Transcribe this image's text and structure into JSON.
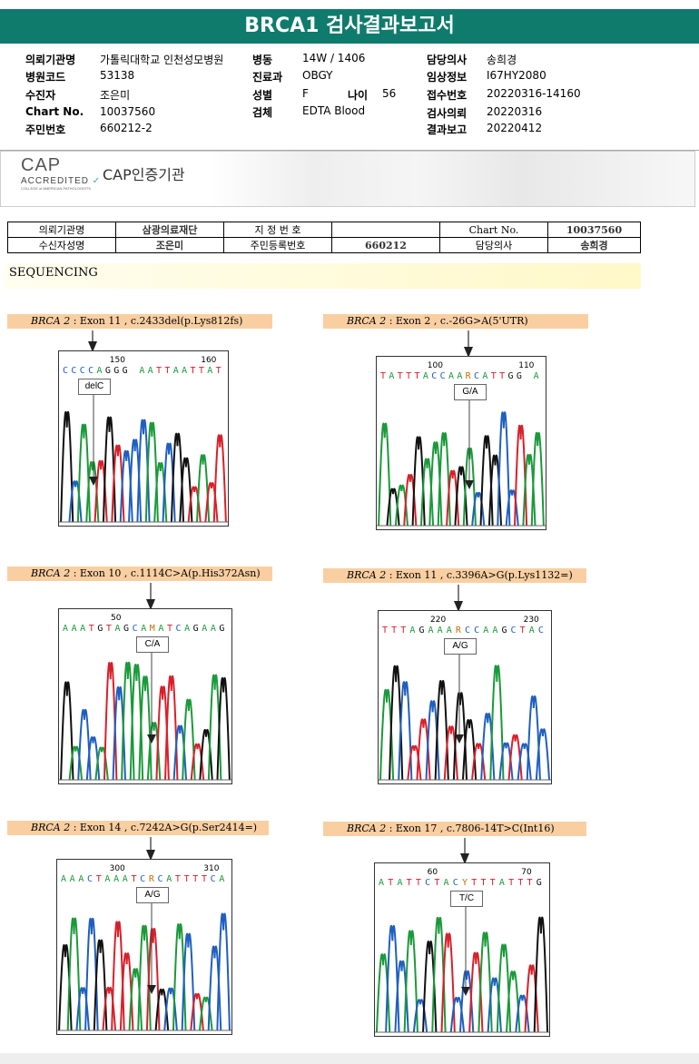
{
  "title": "BRCA1 검사결과보고서",
  "info": [
    {
      "label": "의뢰기관명",
      "value": "가톨릭대학교 인천성모병원"
    },
    {
      "label": "병원코드",
      "value": "53138"
    },
    {
      "label": "수진자",
      "value": "조은미"
    },
    {
      "label": "Chart No.",
      "value": "10037560"
    },
    {
      "label": "주민번호",
      "value": "660212-2"
    },
    {
      "label": "병동",
      "value": "14W / 1406"
    },
    {
      "label": "진료과",
      "value": "OBGY"
    },
    {
      "label": "성별",
      "value": "F"
    },
    {
      "label": "나이",
      "value": "56"
    },
    {
      "label": "검체",
      "value": "EDTA Blood"
    },
    {
      "label": "담당의사",
      "value": "송희경"
    },
    {
      "label": "임상정보",
      "value": "I67HY2080"
    },
    {
      "label": "접수번호",
      "value": "20220316-14160"
    },
    {
      "label": "검사의뢰",
      "value": "20220316"
    },
    {
      "label": "결과보고",
      "value": "20220412"
    }
  ],
  "cap": {
    "big": "CAP",
    "accredited": "ACCREDITED",
    "college": "COLLEGE of AMERICAN PATHOLOGISTS",
    "text": "CAP인증기관"
  },
  "patient_table": {
    "r1": [
      "의뢰기관명",
      "삼광의료재단",
      "지 정 번 호",
      "",
      "Chart No.",
      "10037560"
    ],
    "r2": [
      "수신자성명",
      "조은미",
      "주민등록번호",
      "660212",
      "담당의사",
      "송희경"
    ]
  },
  "section": "SEQUENCING",
  "panels": [
    {
      "gene": "BRCA 2",
      "desc": " : Exon 11 , c.2433del(p.Lys812fs)",
      "seq": "CCCCAGGG AATTAATTAT",
      "pos1": "150",
      "pos2": "160",
      "call": "delC"
    },
    {
      "gene": "BRCA 2",
      "desc": " : Exon 2 , c.-26G>A(5'UTR)",
      "seq": "TATTTACCAARCATTGG A",
      "pos1": "100",
      "pos2": "110",
      "call": "G/A"
    },
    {
      "gene": "BRCA 2",
      "desc": " : Exon 10 , c.1114C>A(p.His372Asn)",
      "seq": "AAATGTAGCAMATCAGAAG",
      "pos1": "50",
      "pos2": "",
      "call": "C/A"
    },
    {
      "gene": "BRCA 2",
      "desc": " : Exon 11 , c.3396A>G(p.Lys1132=)",
      "seq": "TTTAGAAARCCAAGCTAC",
      "pos1": "220",
      "pos2": "230",
      "call": "A/G"
    },
    {
      "gene": "BRCA 2",
      "desc": " : Exon 14 , c.7242A>G(p.Ser2414=)",
      "seq": "AAACTAAATCRCATTTTCA",
      "pos1": "300",
      "pos2": "310",
      "call": "A/G"
    },
    {
      "gene": "BRCA 2",
      "desc": " : Exon 17 , c.7806-14T>C(Int16)",
      "seq": "ATATTCTACYTTTATTTG",
      "pos1": "60",
      "pos2": "70",
      "call": "T/C"
    }
  ]
}
